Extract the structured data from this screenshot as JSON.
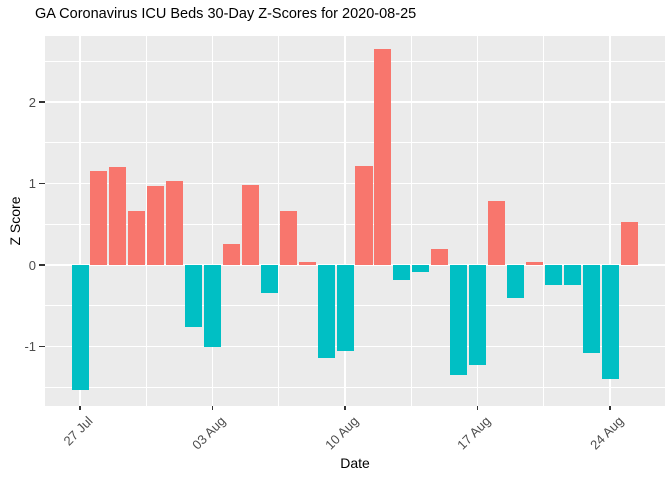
{
  "page": {
    "background": "#FFFFFF"
  },
  "chart_data": {
    "type": "bar",
    "title": "GA Coronavirus ICU Beds 30-Day Z-Scores for 2020-08-25",
    "xlabel": "Date",
    "ylabel": "Z Score",
    "legend": "none",
    "grid": true,
    "panel_theme": "ggplot-gray",
    "x_tick_labels": [
      "27 Jul",
      "03 Aug",
      "10 Aug",
      "17 Aug",
      "24 Aug"
    ],
    "x_tick_days": [
      1,
      8,
      15,
      22,
      29
    ],
    "y_tick_labels": [
      "-1",
      "0",
      "1",
      "2"
    ],
    "y_tick_values": [
      -1,
      0,
      1,
      2
    ],
    "y_minor_values": [
      -1.5,
      -0.5,
      0.5,
      1.5,
      2.5
    ],
    "ylim": [
      -1.73,
      2.81
    ],
    "x_domain_days": [
      -0.85,
      31.9
    ],
    "bar_width_fraction": 0.9,
    "categories": [
      "2020-07-27",
      "2020-07-28",
      "2020-07-29",
      "2020-07-30",
      "2020-07-31",
      "2020-08-01",
      "2020-08-02",
      "2020-08-03",
      "2020-08-04",
      "2020-08-05",
      "2020-08-06",
      "2020-08-07",
      "2020-08-08",
      "2020-08-09",
      "2020-08-10",
      "2020-08-11",
      "2020-08-12",
      "2020-08-13",
      "2020-08-14",
      "2020-08-15",
      "2020-08-16",
      "2020-08-17",
      "2020-08-18",
      "2020-08-19",
      "2020-08-20",
      "2020-08-21",
      "2020-08-22",
      "2020-08-23",
      "2020-08-24",
      "2020-08-25"
    ],
    "values": [
      -1.53,
      1.15,
      1.2,
      0.66,
      0.97,
      1.03,
      -0.76,
      -1.01,
      0.26,
      0.98,
      -0.34,
      0.66,
      0.04,
      -1.14,
      -1.05,
      1.21,
      2.65,
      -0.18,
      -0.08,
      0.2,
      -1.35,
      -1.23,
      0.79,
      -0.4,
      0.04,
      -0.24,
      -0.24,
      -1.08,
      -1.4,
      0.53
    ],
    "colors": {
      "positive_bar": "#F8766D",
      "negative_bar": "#00BFC4",
      "panel_background": "#EBEBEB",
      "gridline": "#FFFFFF",
      "axis_text": "#4D4D4D",
      "tick_mark": "#333333",
      "title_text": "#000000"
    }
  }
}
